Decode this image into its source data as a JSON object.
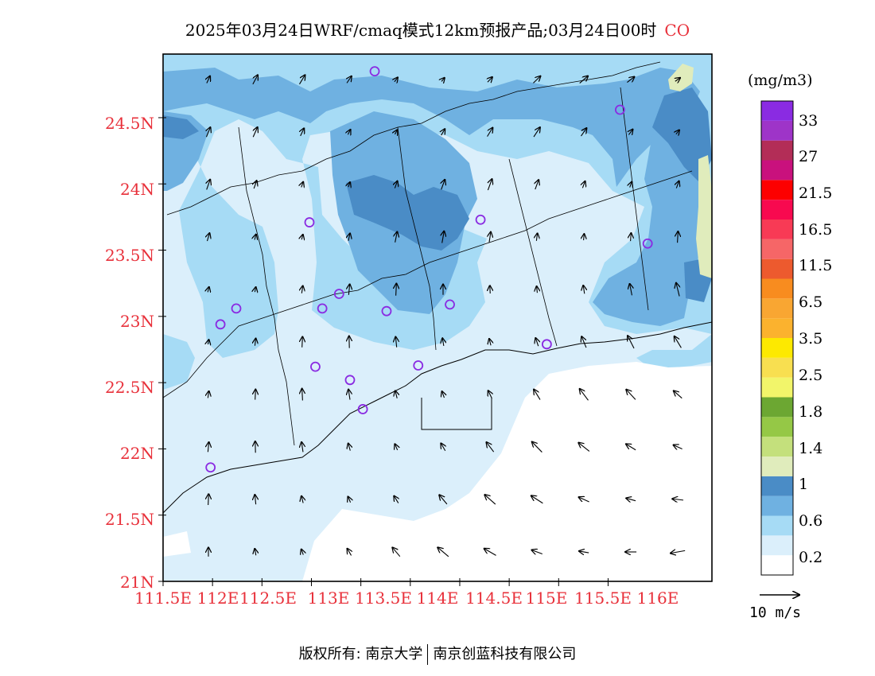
{
  "title": {
    "main": "2025年03月24日WRF/cmaq模式12km预报产品;03月24日00时",
    "species": "CO"
  },
  "map": {
    "lat_labels": [
      "24.5N",
      "24N",
      "23.5N",
      "23N",
      "22.5N",
      "22N",
      "21.5N",
      "21N"
    ],
    "lon_labels": [
      "111.5E",
      "112E",
      "112.5E",
      "113E",
      "113.5E",
      "114E",
      "114.5E",
      "115E",
      "115.5E",
      "116E"
    ],
    "extent": {
      "lon": [
        111.5,
        117.05
      ],
      "lat": [
        21.0,
        24.98
      ]
    },
    "station_color": "#8a2be2",
    "stations": [
      [
        113.64,
        24.85
      ],
      [
        116.12,
        24.56
      ],
      [
        114.71,
        23.73
      ],
      [
        112.98,
        23.71
      ],
      [
        116.4,
        23.55
      ],
      [
        113.28,
        23.17
      ],
      [
        113.11,
        23.06
      ],
      [
        113.76,
        23.04
      ],
      [
        114.4,
        23.09
      ],
      [
        112.24,
        23.06
      ],
      [
        112.08,
        22.94
      ],
      [
        115.38,
        22.79
      ],
      [
        113.04,
        22.62
      ],
      [
        113.39,
        22.52
      ],
      [
        114.08,
        22.63
      ],
      [
        113.52,
        22.3
      ],
      [
        111.98,
        21.86
      ]
    ]
  },
  "colorbar": {
    "unit": "(mg/m3)",
    "levels": [
      "0.2",
      "0.6",
      "1",
      "1.4",
      "1.8",
      "2.5",
      "3.5",
      "6.5",
      "11.5",
      "16.5",
      "21.5",
      "27",
      "33"
    ],
    "colors": [
      "#ffffff",
      "#dbeffb",
      "#a6dbf5",
      "#6fb1e1",
      "#4a8cc6",
      "#e0ecbc",
      "#c4e07c",
      "#95c846",
      "#6ca732",
      "#f2f56a",
      "#f8df50",
      "#fde900",
      "#fbb22e",
      "#f9a632",
      "#f88c1f",
      "#ed5a2e",
      "#f66667",
      "#f83a55",
      "#f8094f",
      "#fd0000",
      "#c9117d",
      "#b32d57",
      "#9e34c8",
      "#8a2be2"
    ]
  },
  "wind": {
    "ref_label": "10  m/s"
  },
  "footer": {
    "left": "版权所有: 南京大学",
    "right": "南京创蓝科技有限公司"
  }
}
